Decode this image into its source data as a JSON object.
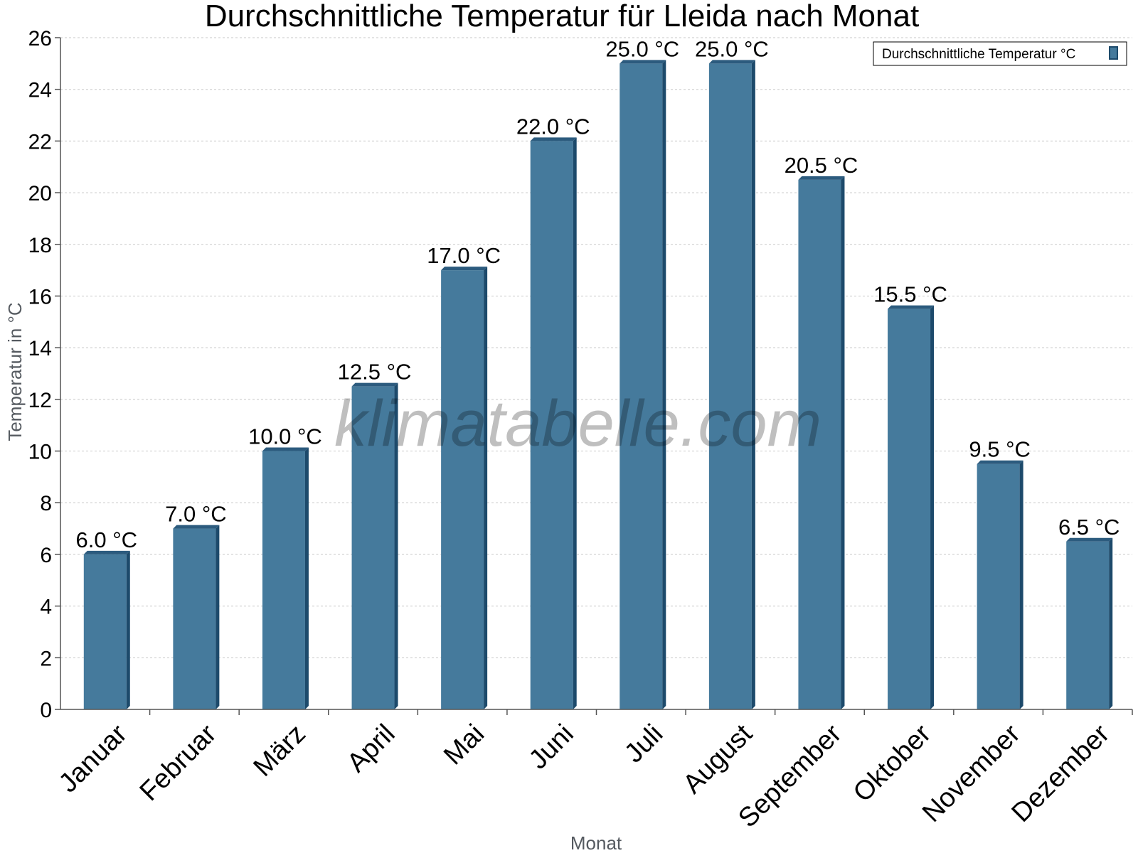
{
  "chart_data": {
    "type": "bar",
    "title": "Durchschnittliche Temperatur für Lleida nach Monat",
    "xlabel": "Monat",
    "ylabel": "Temperatur in °C",
    "ylim": [
      0,
      26
    ],
    "yticks": [
      "0",
      "2",
      "4",
      "6",
      "8",
      "10",
      "12",
      "14",
      "16",
      "18",
      "20",
      "22",
      "24",
      "26"
    ],
    "grid": true,
    "legend_position": "top-right",
    "categories": [
      "Januar",
      "Februar",
      "März",
      "April",
      "Mai",
      "Juni",
      "Juli",
      "August",
      "September",
      "Oktober",
      "November",
      "Dezember"
    ],
    "series": [
      {
        "name": "Durchschnittliche Temperatur °C",
        "values": [
          6.0,
          7.0,
          10.0,
          12.5,
          17.0,
          22.0,
          25.0,
          25.0,
          20.5,
          15.5,
          9.5,
          6.5
        ],
        "labels": [
          "6.0 °C",
          "7.0 °C",
          "10.0 °C",
          "12.5 °C",
          "17.0 °C",
          "22.0 °C",
          "25.0 °C",
          "25.0 °C",
          "20.5 °C",
          "15.5 °C",
          "9.5 °C",
          "6.5 °C"
        ]
      }
    ],
    "colors": {
      "bar": "#457a9c",
      "bar_side": "#1d4a6b",
      "bar_top": "#2c5b7e"
    }
  },
  "watermark": "klimatabelle.com"
}
